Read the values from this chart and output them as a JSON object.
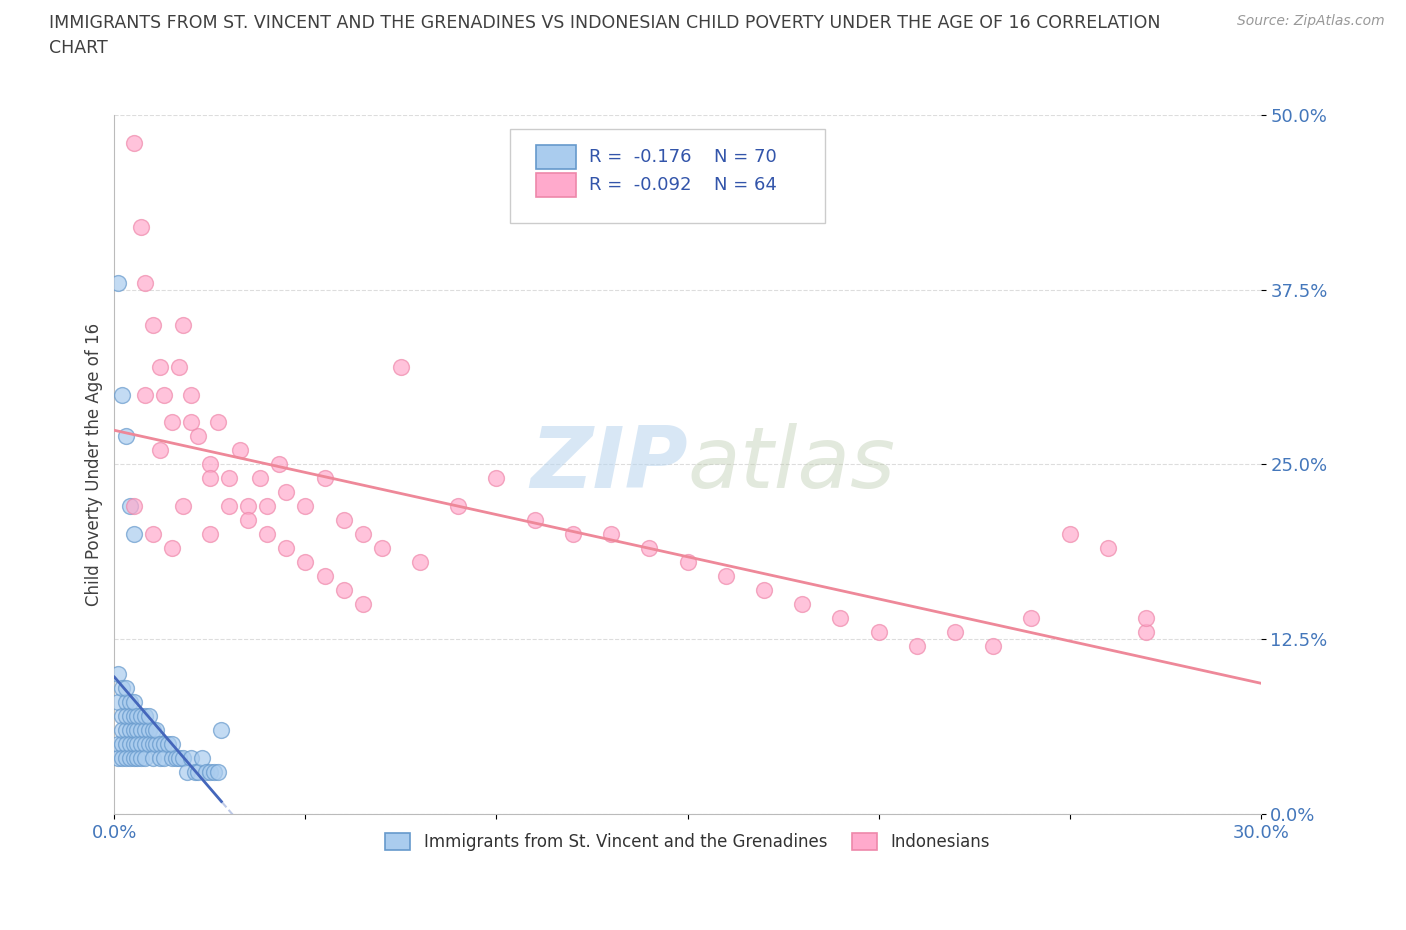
{
  "title_line1": "IMMIGRANTS FROM ST. VINCENT AND THE GRENADINES VS INDONESIAN CHILD POVERTY UNDER THE AGE OF 16 CORRELATION",
  "title_line2": "CHART",
  "source": "Source: ZipAtlas.com",
  "ylabel": "Child Poverty Under the Age of 16",
  "xlim": [
    0.0,
    0.3
  ],
  "ylim": [
    0.0,
    0.5
  ],
  "xticks": [
    0.0,
    0.05,
    0.1,
    0.15,
    0.2,
    0.25,
    0.3
  ],
  "xticklabels": [
    "0.0%",
    "",
    "",
    "",
    "",
    "",
    "30.0%"
  ],
  "yticks": [
    0.0,
    0.125,
    0.25,
    0.375,
    0.5
  ],
  "yticklabels": [
    "0.0%",
    "12.5%",
    "25.0%",
    "37.5%",
    "50.0%"
  ],
  "blue_fill": "#aaccee",
  "blue_edge": "#6699cc",
  "pink_fill": "#ffaacc",
  "pink_edge": "#ee88aa",
  "blue_line": "#4466bb",
  "pink_line": "#ee8899",
  "dashed_blue": "#aaccee",
  "dashed_pink": "#ffaacc",
  "R_blue": -0.176,
  "N_blue": 70,
  "R_pink": -0.092,
  "N_pink": 64,
  "legend_label_blue": "Immigrants from St. Vincent and the Grenadines",
  "legend_label_pink": "Indonesians",
  "watermark": "ZIPatlas",
  "bg": "#ffffff",
  "grid_color": "#dddddd",
  "title_color": "#404040",
  "tick_color": "#4477bb",
  "blue_scatter_x": [
    0.001,
    0.001,
    0.001,
    0.001,
    0.002,
    0.002,
    0.002,
    0.002,
    0.002,
    0.003,
    0.003,
    0.003,
    0.003,
    0.003,
    0.003,
    0.004,
    0.004,
    0.004,
    0.004,
    0.004,
    0.005,
    0.005,
    0.005,
    0.005,
    0.005,
    0.006,
    0.006,
    0.006,
    0.006,
    0.007,
    0.007,
    0.007,
    0.007,
    0.008,
    0.008,
    0.008,
    0.008,
    0.009,
    0.009,
    0.009,
    0.01,
    0.01,
    0.01,
    0.011,
    0.011,
    0.012,
    0.012,
    0.013,
    0.013,
    0.014,
    0.015,
    0.015,
    0.016,
    0.017,
    0.018,
    0.019,
    0.02,
    0.021,
    0.022,
    0.023,
    0.024,
    0.025,
    0.026,
    0.027,
    0.001,
    0.002,
    0.003,
    0.004,
    0.005,
    0.028
  ],
  "blue_scatter_y": [
    0.05,
    0.08,
    0.1,
    0.04,
    0.07,
    0.05,
    0.09,
    0.06,
    0.04,
    0.08,
    0.06,
    0.05,
    0.07,
    0.09,
    0.04,
    0.06,
    0.08,
    0.05,
    0.07,
    0.04,
    0.07,
    0.05,
    0.06,
    0.08,
    0.04,
    0.06,
    0.05,
    0.07,
    0.04,
    0.06,
    0.05,
    0.07,
    0.04,
    0.06,
    0.05,
    0.07,
    0.04,
    0.06,
    0.05,
    0.07,
    0.05,
    0.06,
    0.04,
    0.05,
    0.06,
    0.05,
    0.04,
    0.05,
    0.04,
    0.05,
    0.04,
    0.05,
    0.04,
    0.04,
    0.04,
    0.03,
    0.04,
    0.03,
    0.03,
    0.04,
    0.03,
    0.03,
    0.03,
    0.03,
    0.38,
    0.3,
    0.27,
    0.22,
    0.2,
    0.06
  ],
  "pink_scatter_x": [
    0.005,
    0.007,
    0.008,
    0.01,
    0.012,
    0.013,
    0.015,
    0.017,
    0.018,
    0.02,
    0.022,
    0.025,
    0.027,
    0.03,
    0.033,
    0.035,
    0.038,
    0.04,
    0.043,
    0.045,
    0.05,
    0.055,
    0.06,
    0.065,
    0.07,
    0.075,
    0.08,
    0.09,
    0.1,
    0.11,
    0.12,
    0.13,
    0.14,
    0.15,
    0.16,
    0.17,
    0.18,
    0.19,
    0.2,
    0.21,
    0.22,
    0.23,
    0.24,
    0.25,
    0.26,
    0.27,
    0.005,
    0.01,
    0.015,
    0.02,
    0.025,
    0.03,
    0.035,
    0.04,
    0.045,
    0.05,
    0.055,
    0.06,
    0.065,
    0.27,
    0.008,
    0.012,
    0.018,
    0.025
  ],
  "pink_scatter_y": [
    0.48,
    0.42,
    0.38,
    0.35,
    0.32,
    0.3,
    0.28,
    0.32,
    0.35,
    0.3,
    0.27,
    0.25,
    0.28,
    0.24,
    0.26,
    0.22,
    0.24,
    0.22,
    0.25,
    0.23,
    0.22,
    0.24,
    0.21,
    0.2,
    0.19,
    0.32,
    0.18,
    0.22,
    0.24,
    0.21,
    0.2,
    0.2,
    0.19,
    0.18,
    0.17,
    0.16,
    0.15,
    0.14,
    0.13,
    0.12,
    0.13,
    0.12,
    0.14,
    0.2,
    0.19,
    0.13,
    0.22,
    0.2,
    0.19,
    0.28,
    0.24,
    0.22,
    0.21,
    0.2,
    0.19,
    0.18,
    0.17,
    0.16,
    0.15,
    0.14,
    0.3,
    0.26,
    0.22,
    0.2
  ]
}
